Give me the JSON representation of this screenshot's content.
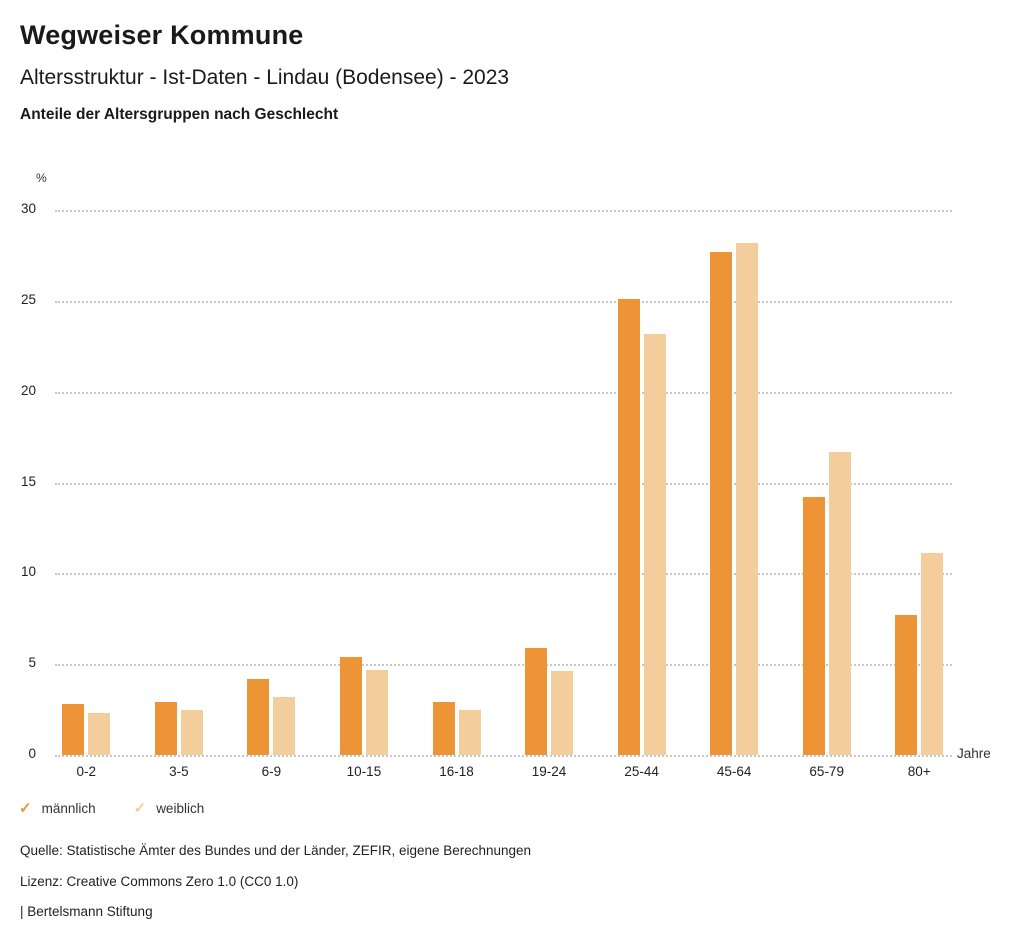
{
  "header": {
    "title": "Wegweiser Kommune",
    "subtitle": "Altersstruktur - Ist-Daten - Lindau (Bodensee) - 2023",
    "chart_heading": "Anteile der Altersgruppen nach Geschlecht"
  },
  "chart_data": {
    "type": "bar",
    "categories": [
      "0-2",
      "3-5",
      "6-9",
      "10-15",
      "16-18",
      "19-24",
      "25-44",
      "45-64",
      "65-79",
      "80+"
    ],
    "series": [
      {
        "name": "männlich",
        "color": "#EC9436",
        "values": [
          2.8,
          2.9,
          4.2,
          5.4,
          2.9,
          5.9,
          25.1,
          27.7,
          14.2,
          7.7
        ]
      },
      {
        "name": "weiblich",
        "color": "#F4CD9D",
        "values": [
          2.3,
          2.5,
          3.2,
          4.7,
          2.5,
          4.6,
          23.2,
          28.2,
          16.7,
          11.1
        ]
      }
    ],
    "ylim": [
      0,
      30
    ],
    "ytick_step": 5,
    "y_unit": "%",
    "x_unit": "Jahre",
    "grid": "horizontal-dotted",
    "legend_position": "bottom-left"
  },
  "legend": {
    "items": [
      {
        "label": "männlich",
        "color": "#E8953B",
        "icon": "check-icon"
      },
      {
        "label": "weiblich",
        "color": "#F2CFA2",
        "icon": "check-icon"
      }
    ]
  },
  "footer": {
    "source": "Quelle: Statistische Ämter des Bundes und der Länder, ZEFIR, eigene Berechnungen",
    "license": "Lizenz: Creative Commons Zero 1.0 (CC0 1.0)",
    "attribution": "| Bertelsmann Stiftung"
  }
}
